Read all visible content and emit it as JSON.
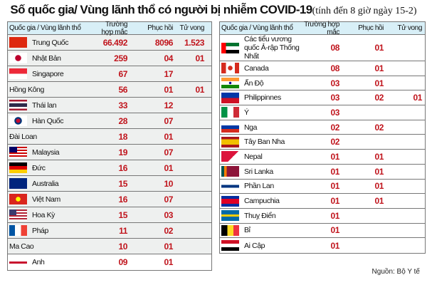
{
  "title": {
    "main": "Số quốc gia/ Vùng lãnh thổ có người bị nhiễm COVID-19",
    "sub": "(tính đến 8 giờ ngày 15-2)"
  },
  "headers": {
    "country": "Quốc gia / Vùng lãnh thổ",
    "cases": "Trường hợp mắc",
    "recovered": "Phục hồi",
    "deaths": "Tử vong"
  },
  "left": [
    {
      "name": "Trung Quốc",
      "flag": "cn",
      "cases": "66.492",
      "recovered": "8096",
      "deaths": "1.523"
    },
    {
      "name": "Nhật Bản",
      "flag": "jp",
      "cases": "259",
      "recovered": "04",
      "deaths": "01"
    },
    {
      "name": "Singapore",
      "flag": "sg",
      "cases": "67",
      "recovered": "17",
      "deaths": ""
    },
    {
      "name": "Hồng Kông",
      "flag": "",
      "cases": "56",
      "recovered": "01",
      "deaths": "01"
    },
    {
      "name": "Thái lan",
      "flag": "th",
      "cases": "33",
      "recovered": "12",
      "deaths": ""
    },
    {
      "name": "Hàn Quốc",
      "flag": "kr",
      "cases": "28",
      "recovered": "07",
      "deaths": ""
    },
    {
      "name": "Đài Loan",
      "flag": "",
      "cases": "18",
      "recovered": "01",
      "deaths": ""
    },
    {
      "name": "Malaysia",
      "flag": "my",
      "cases": "19",
      "recovered": "07",
      "deaths": ""
    },
    {
      "name": "Đức",
      "flag": "de",
      "cases": "16",
      "recovered": "01",
      "deaths": ""
    },
    {
      "name": "Australia",
      "flag": "au",
      "cases": "15",
      "recovered": "10",
      "deaths": ""
    },
    {
      "name": "Việt Nam",
      "flag": "vn",
      "cases": "16",
      "recovered": "07",
      "deaths": ""
    },
    {
      "name": "Hoa Kỳ",
      "flag": "us",
      "cases": "15",
      "recovered": "03",
      "deaths": ""
    },
    {
      "name": "Pháp",
      "flag": "fr",
      "cases": "11",
      "recovered": "02",
      "deaths": ""
    },
    {
      "name": "Ma Cao",
      "flag": "",
      "cases": "10",
      "recovered": "01",
      "deaths": ""
    },
    {
      "name": "Anh",
      "flag": "gb",
      "cases": "09",
      "recovered": "01",
      "deaths": ""
    }
  ],
  "right": [
    {
      "name": "Các tiểu vương quốc Ả-rập Thống Nhất",
      "flag": "ae",
      "cases": "08",
      "recovered": "01",
      "deaths": ""
    },
    {
      "name": "Canada",
      "flag": "ca",
      "cases": "08",
      "recovered": "01",
      "deaths": ""
    },
    {
      "name": "Ấn Độ",
      "flag": "in",
      "cases": "03",
      "recovered": "01",
      "deaths": ""
    },
    {
      "name": "Philippinnes",
      "flag": "ph",
      "cases": "03",
      "recovered": "02",
      "deaths": "01"
    },
    {
      "name": "Ý",
      "flag": "it",
      "cases": "03",
      "recovered": "",
      "deaths": ""
    },
    {
      "name": "Nga",
      "flag": "ru",
      "cases": "02",
      "recovered": "02",
      "deaths": ""
    },
    {
      "name": "Tây Ban Nha",
      "flag": "es",
      "cases": "02",
      "recovered": "",
      "deaths": ""
    },
    {
      "name": "Nepal",
      "flag": "np",
      "cases": "01",
      "recovered": "01",
      "deaths": ""
    },
    {
      "name": "Sri Lanka",
      "flag": "lk",
      "cases": "01",
      "recovered": "01",
      "deaths": ""
    },
    {
      "name": "Phần Lan",
      "flag": "fi",
      "cases": "01",
      "recovered": "01",
      "deaths": ""
    },
    {
      "name": "Campuchia",
      "flag": "kh",
      "cases": "01",
      "recovered": "01",
      "deaths": ""
    },
    {
      "name": "Thuỵ Điển",
      "flag": "se",
      "cases": "01",
      "recovered": "",
      "deaths": ""
    },
    {
      "name": "Bỉ",
      "flag": "be",
      "cases": "01",
      "recovered": "",
      "deaths": ""
    },
    {
      "name": "Ai Cập",
      "flag": "eg",
      "cases": "01",
      "recovered": "",
      "deaths": ""
    }
  ],
  "source": "Nguồn: Bộ Y tế"
}
